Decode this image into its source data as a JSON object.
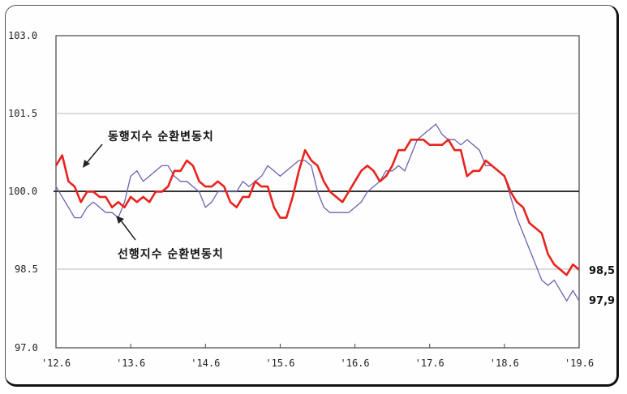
{
  "chart_data": {
    "type": "line",
    "title": "",
    "xlabel": "",
    "ylabel": "",
    "ylim": [
      97.0,
      103.0
    ],
    "yticks": [
      "103.0",
      "101.5",
      "100.0",
      "98.5",
      "97.0"
    ],
    "xticks": [
      "'12.6",
      "'13.6",
      "'14.6",
      "'15.6",
      "'16.6",
      "'17.6",
      "'18.6",
      "'19.6"
    ],
    "grid": true,
    "reference_line": 100.0,
    "x_months_from_2012_06": [
      0,
      1,
      2,
      3,
      4,
      5,
      6,
      7,
      8,
      9,
      10,
      11,
      12,
      13,
      14,
      15,
      16,
      17,
      18,
      19,
      20,
      21,
      22,
      23,
      24,
      25,
      26,
      27,
      28,
      29,
      30,
      31,
      32,
      33,
      34,
      35,
      36,
      37,
      38,
      39,
      40,
      41,
      42,
      43,
      44,
      45,
      46,
      47,
      48,
      49,
      50,
      51,
      52,
      53,
      54,
      55,
      56,
      57,
      58,
      59,
      60,
      61,
      62,
      63,
      64,
      65,
      66,
      67,
      68,
      69,
      70,
      71,
      72,
      73,
      74,
      75,
      76,
      77,
      78,
      79,
      80,
      81,
      82,
      83,
      84
    ],
    "series": [
      {
        "name": "동행지수 순환변동치",
        "color": "#e8231e",
        "end_value": "98.5",
        "values": [
          100.5,
          100.7,
          100.2,
          100.1,
          99.8,
          100.0,
          100.0,
          99.9,
          99.9,
          99.7,
          99.8,
          99.7,
          99.9,
          99.8,
          99.9,
          99.8,
          100.0,
          100.0,
          100.1,
          100.4,
          100.4,
          100.6,
          100.5,
          100.2,
          100.1,
          100.1,
          100.2,
          100.1,
          99.8,
          99.7,
          99.9,
          99.9,
          100.2,
          100.1,
          100.1,
          99.7,
          99.5,
          99.5,
          99.9,
          100.4,
          100.8,
          100.6,
          100.5,
          100.2,
          100.0,
          99.9,
          99.8,
          100.0,
          100.2,
          100.4,
          100.5,
          100.4,
          100.2,
          100.3,
          100.5,
          100.8,
          100.8,
          101.0,
          101.0,
          101.0,
          100.9,
          100.9,
          100.9,
          101.0,
          100.8,
          100.8,
          100.3,
          100.4,
          100.4,
          100.6,
          100.5,
          100.4,
          100.3,
          100.0,
          99.8,
          99.7,
          99.4,
          99.3,
          99.2,
          98.8,
          98.6,
          98.5,
          98.4,
          98.6,
          98.5
        ]
      },
      {
        "name": "선행지수 순환변동치",
        "color": "#6a63b0",
        "end_value": "97.9",
        "values": [
          100.1,
          99.9,
          99.7,
          99.5,
          99.5,
          99.7,
          99.8,
          99.7,
          99.6,
          99.6,
          99.5,
          99.8,
          100.3,
          100.4,
          100.2,
          100.3,
          100.4,
          100.5,
          100.5,
          100.3,
          100.2,
          100.2,
          100.1,
          100.0,
          99.7,
          99.8,
          100.0,
          100.0,
          100.0,
          100.0,
          100.2,
          100.1,
          100.2,
          100.3,
          100.5,
          100.4,
          100.3,
          100.4,
          100.5,
          100.6,
          100.6,
          100.5,
          100.0,
          99.7,
          99.6,
          99.6,
          99.6,
          99.6,
          99.7,
          99.8,
          100.0,
          100.1,
          100.2,
          100.4,
          100.4,
          100.5,
          100.4,
          100.7,
          101.0,
          101.1,
          101.2,
          101.3,
          101.1,
          101.0,
          101.0,
          100.9,
          101.0,
          100.9,
          100.8,
          100.5,
          100.5,
          100.4,
          100.3,
          99.9,
          99.5,
          99.2,
          98.9,
          98.6,
          98.3,
          98.2,
          98.3,
          98.1,
          97.9,
          98.1,
          97.9
        ]
      }
    ],
    "annotations": [
      {
        "text": "동행지수 순환변동치",
        "target": "동행지수 순환변동치"
      },
      {
        "text": "선행지수 순환변동치",
        "target": "선행지수 순환변동치"
      }
    ]
  },
  "labels": {
    "y": [
      "103.0",
      "101.5",
      "100.0",
      "98.5",
      "97.0"
    ],
    "x": [
      "'12.6",
      "'13.6",
      "'14.6",
      "'15.6",
      "'16.6",
      "'17.6",
      "'18.6",
      "'19.6"
    ],
    "annot_coincident": "동행지수 순환변동치",
    "annot_leading": "선행지수 순환변동치",
    "end_coincident": "98,5",
    "end_leading": "97,9"
  }
}
